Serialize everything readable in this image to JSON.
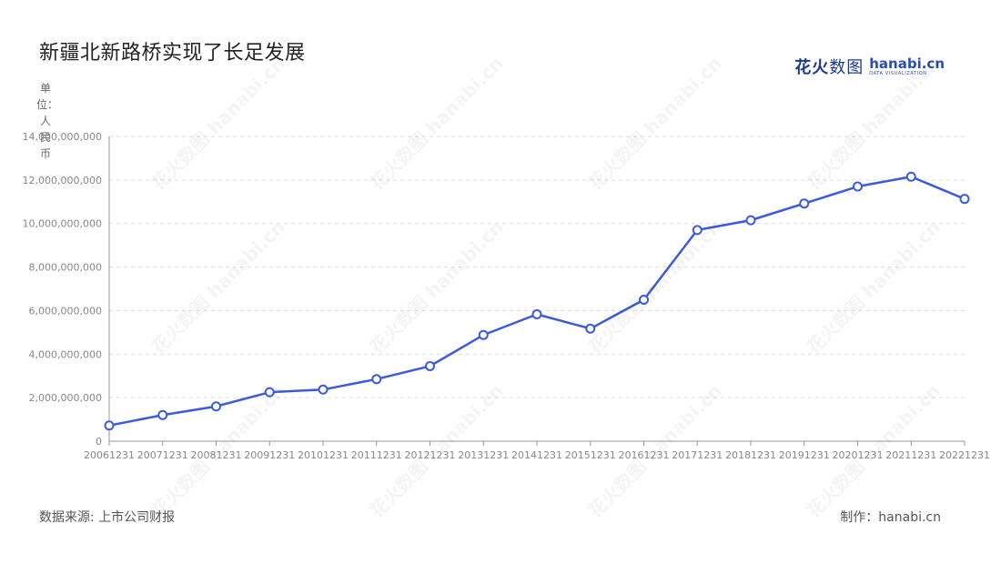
{
  "title": "新疆北新路桥实现了长足发展",
  "brand": {
    "cn_bold": "花火",
    "cn_thin": "数图",
    "en": "hanabi.cn",
    "en_sub": "DATA VISUALIZATION"
  },
  "source": "数据来源: 上市公司财报",
  "maker": "制作：hanabi.cn",
  "colors": {
    "line": "#3b5bdb",
    "grid": "#dddddd",
    "axis": "#999999"
  },
  "chart_data": {
    "type": "line",
    "title": "新疆北新路桥实现了长足发展",
    "ylabel": "单位：人民币",
    "xlabel": "",
    "x": [
      "20061231",
      "20071231",
      "20081231",
      "20091231",
      "20101231",
      "20111231",
      "20121231",
      "20131231",
      "20141231",
      "20151231",
      "20161231",
      "20171231",
      "20181231",
      "20191231",
      "20201231",
      "20211231",
      "20221231"
    ],
    "series": [
      {
        "values": [
          720000000,
          1200000000,
          1600000000,
          2250000000,
          2370000000,
          2850000000,
          3450000000,
          4880000000,
          5830000000,
          5170000000,
          6500000000,
          9700000000,
          10150000000,
          10920000000,
          11700000000,
          12150000000,
          11130000000
        ]
      }
    ],
    "ylim": [
      0,
      14000000000
    ],
    "yticks": [
      0,
      2000000000,
      4000000000,
      6000000000,
      8000000000,
      10000000000,
      12000000000,
      14000000000
    ],
    "ytick_labels": [
      "0",
      "2,000,000,000",
      "4,000,000,000",
      "6,000,000,000",
      "8,000,000,000",
      "10,000,000,000",
      "12,000,000,000",
      "14,000,000,000"
    ],
    "grid": true,
    "legend": "none"
  }
}
